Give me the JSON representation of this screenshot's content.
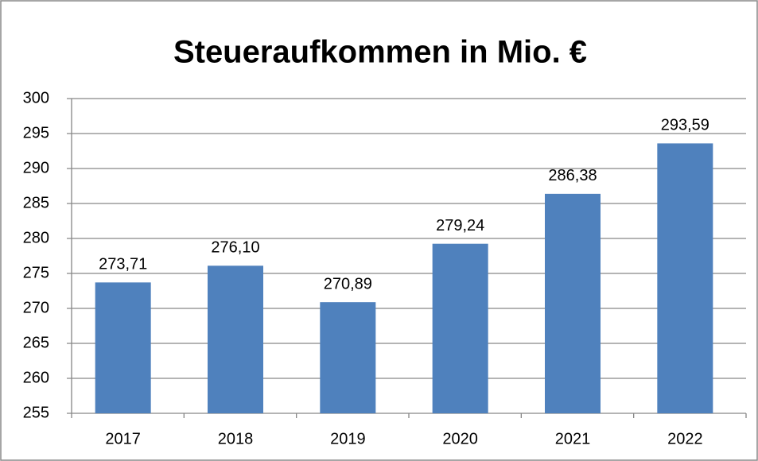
{
  "chart_data": {
    "type": "bar",
    "title": "Steueraufkommen in Mio. €",
    "categories": [
      "2017",
      "2018",
      "2019",
      "2020",
      "2021",
      "2022"
    ],
    "values": [
      273.71,
      276.1,
      270.89,
      279.24,
      286.38,
      293.59
    ],
    "value_labels": [
      "273,71",
      "276,10",
      "270,89",
      "279,24",
      "286,38",
      "293,59"
    ],
    "color": "#4f81bd",
    "ylim": [
      255,
      300
    ],
    "yticks": [
      255,
      260,
      265,
      270,
      275,
      280,
      285,
      290,
      295,
      300
    ],
    "grid": true
  }
}
